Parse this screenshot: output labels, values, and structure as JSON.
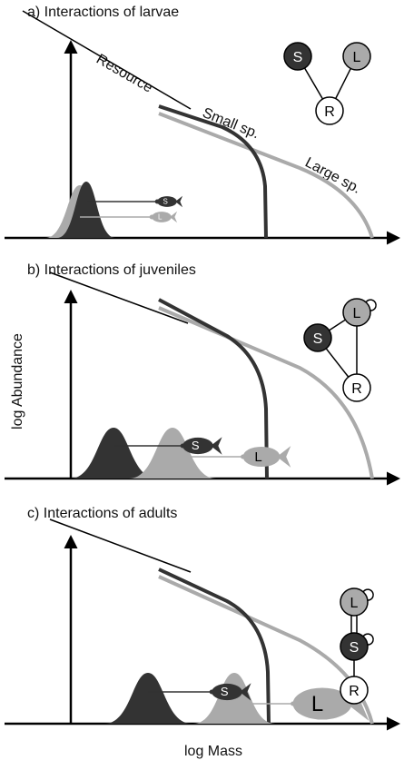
{
  "panels": [
    {
      "title": "a) Interactions of larvae",
      "curve_labels": [
        "Resource",
        "Small sp.",
        "Large sp."
      ],
      "fish_labels": [
        "S",
        "L"
      ],
      "nodes": [
        "S",
        "L",
        "R"
      ]
    },
    {
      "title": "b) Interactions of juveniles",
      "fish_labels": [
        "S",
        "L"
      ],
      "nodes": [
        "L",
        "S",
        "R"
      ]
    },
    {
      "title": "c) Interactions of adults",
      "fish_labels": [
        "S",
        "L"
      ],
      "nodes": [
        "L",
        "S",
        "R"
      ]
    }
  ],
  "x_axis_label": "log Mass",
  "y_axis_label": "log Abundance"
}
